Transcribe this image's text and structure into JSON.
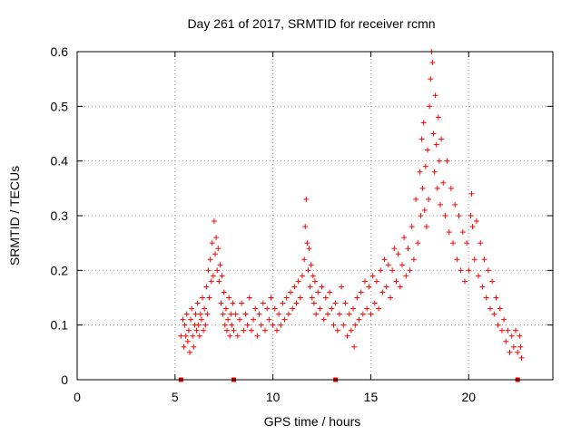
{
  "chart_data": {
    "type": "scatter",
    "title": "Day 261 of 2017, SRMTID for receiver rcmn",
    "xlabel": "GPS time / hours",
    "ylabel": "SRMTID / TECUs",
    "xlim": [
      0,
      24.3
    ],
    "ylim": [
      0,
      0.6
    ],
    "x_ticks": [
      0,
      5,
      10,
      15,
      20
    ],
    "x_tick_labels": [
      "0",
      "5",
      "10",
      "15",
      "20"
    ],
    "y_ticks": [
      0,
      0.1,
      0.2,
      0.3,
      0.4,
      0.5,
      0.6
    ],
    "y_tick_labels": [
      "0",
      "0.1",
      "0.2",
      "0.3",
      "0.4",
      "0.5",
      "0.6"
    ],
    "grid": true,
    "marker": "+",
    "color": "#ff0000",
    "baseline_markers_x": [
      5.3,
      8.0,
      13.2,
      22.5
    ],
    "series": [
      {
        "name": "SRMTID",
        "points": [
          [
            5.3,
            0.08
          ],
          [
            5.4,
            0.11
          ],
          [
            5.45,
            0.06
          ],
          [
            5.5,
            0.1
          ],
          [
            5.55,
            0.08
          ],
          [
            5.6,
            0.12
          ],
          [
            5.65,
            0.07
          ],
          [
            5.7,
            0.09
          ],
          [
            5.75,
            0.05
          ],
          [
            5.8,
            0.11
          ],
          [
            5.85,
            0.13
          ],
          [
            5.9,
            0.08
          ],
          [
            5.95,
            0.06
          ],
          [
            6.0,
            0.1
          ],
          [
            6.05,
            0.12
          ],
          [
            6.1,
            0.09
          ],
          [
            6.15,
            0.14
          ],
          [
            6.2,
            0.1
          ],
          [
            6.25,
            0.08
          ],
          [
            6.3,
            0.12
          ],
          [
            6.35,
            0.11
          ],
          [
            6.4,
            0.15
          ],
          [
            6.45,
            0.09
          ],
          [
            6.5,
            0.13
          ],
          [
            6.55,
            0.1
          ],
          [
            6.6,
            0.17
          ],
          [
            6.65,
            0.12
          ],
          [
            6.7,
            0.2
          ],
          [
            6.75,
            0.15
          ],
          [
            6.8,
            0.22
          ],
          [
            6.85,
            0.18
          ],
          [
            6.9,
            0.25
          ],
          [
            6.95,
            0.19
          ],
          [
            7.0,
            0.29
          ],
          [
            7.05,
            0.23
          ],
          [
            7.1,
            0.26
          ],
          [
            7.15,
            0.2
          ],
          [
            7.2,
            0.24
          ],
          [
            7.25,
            0.18
          ],
          [
            7.3,
            0.21
          ],
          [
            7.35,
            0.14
          ],
          [
            7.4,
            0.19
          ],
          [
            7.45,
            0.12
          ],
          [
            7.5,
            0.16
          ],
          [
            7.55,
            0.1
          ],
          [
            7.6,
            0.13
          ],
          [
            7.65,
            0.09
          ],
          [
            7.7,
            0.11
          ],
          [
            7.75,
            0.15
          ],
          [
            7.8,
            0.08
          ],
          [
            7.85,
            0.12
          ],
          [
            7.9,
            0.1
          ],
          [
            7.95,
            0.14
          ],
          [
            8.0,
            0.09
          ],
          [
            8.1,
            0.12
          ],
          [
            8.2,
            0.08
          ],
          [
            8.3,
            0.11
          ],
          [
            8.4,
            0.14
          ],
          [
            8.5,
            0.09
          ],
          [
            8.6,
            0.12
          ],
          [
            8.7,
            0.1
          ],
          [
            8.8,
            0.15
          ],
          [
            8.9,
            0.09
          ],
          [
            9.0,
            0.11
          ],
          [
            9.1,
            0.13
          ],
          [
            9.2,
            0.08
          ],
          [
            9.3,
            0.12
          ],
          [
            9.4,
            0.1
          ],
          [
            9.5,
            0.14
          ],
          [
            9.6,
            0.09
          ],
          [
            9.7,
            0.13
          ],
          [
            9.8,
            0.11
          ],
          [
            9.9,
            0.15
          ],
          [
            10.0,
            0.1
          ],
          [
            10.1,
            0.13
          ],
          [
            10.2,
            0.09
          ],
          [
            10.3,
            0.12
          ],
          [
            10.4,
            0.1
          ],
          [
            10.5,
            0.14
          ],
          [
            10.6,
            0.11
          ],
          [
            10.7,
            0.15
          ],
          [
            10.8,
            0.12
          ],
          [
            10.9,
            0.16
          ],
          [
            11.0,
            0.13
          ],
          [
            11.1,
            0.17
          ],
          [
            11.2,
            0.14
          ],
          [
            11.3,
            0.18
          ],
          [
            11.4,
            0.15
          ],
          [
            11.5,
            0.19
          ],
          [
            11.6,
            0.22
          ],
          [
            11.65,
            0.28
          ],
          [
            11.7,
            0.33
          ],
          [
            11.75,
            0.25
          ],
          [
            11.8,
            0.2
          ],
          [
            11.85,
            0.24
          ],
          [
            11.9,
            0.17
          ],
          [
            11.95,
            0.21
          ],
          [
            12.0,
            0.15
          ],
          [
            12.05,
            0.19
          ],
          [
            12.1,
            0.14
          ],
          [
            12.15,
            0.18
          ],
          [
            12.2,
            0.12
          ],
          [
            12.3,
            0.16
          ],
          [
            12.4,
            0.13
          ],
          [
            12.5,
            0.17
          ],
          [
            12.6,
            0.11
          ],
          [
            12.7,
            0.15
          ],
          [
            12.8,
            0.12
          ],
          [
            12.9,
            0.16
          ],
          [
            13.0,
            0.13
          ],
          [
            13.1,
            0.1
          ],
          [
            13.2,
            0.14
          ],
          [
            13.3,
            0.09
          ],
          [
            13.4,
            0.12
          ],
          [
            13.5,
            0.17
          ],
          [
            13.6,
            0.1
          ],
          [
            13.7,
            0.14
          ],
          [
            13.8,
            0.08
          ],
          [
            13.9,
            0.12
          ],
          [
            14.0,
            0.09
          ],
          [
            14.1,
            0.13
          ],
          [
            14.15,
            0.06
          ],
          [
            14.2,
            0.1
          ],
          [
            14.3,
            0.15
          ],
          [
            14.4,
            0.11
          ],
          [
            14.5,
            0.16
          ],
          [
            14.6,
            0.12
          ],
          [
            14.7,
            0.18
          ],
          [
            14.8,
            0.13
          ],
          [
            14.9,
            0.17
          ],
          [
            15.0,
            0.12
          ],
          [
            15.1,
            0.19
          ],
          [
            15.2,
            0.14
          ],
          [
            15.3,
            0.18
          ],
          [
            15.4,
            0.13
          ],
          [
            15.5,
            0.2
          ],
          [
            15.6,
            0.16
          ],
          [
            15.7,
            0.22
          ],
          [
            15.8,
            0.17
          ],
          [
            15.9,
            0.21
          ],
          [
            16.0,
            0.15
          ],
          [
            16.1,
            0.2
          ],
          [
            16.2,
            0.24
          ],
          [
            16.3,
            0.18
          ],
          [
            16.4,
            0.23
          ],
          [
            16.5,
            0.17
          ],
          [
            16.6,
            0.21
          ],
          [
            16.7,
            0.26
          ],
          [
            16.8,
            0.19
          ],
          [
            16.9,
            0.24
          ],
          [
            17.0,
            0.2
          ],
          [
            17.1,
            0.28
          ],
          [
            17.2,
            0.22
          ],
          [
            17.3,
            0.33
          ],
          [
            17.4,
            0.25
          ],
          [
            17.5,
            0.38
          ],
          [
            17.55,
            0.3
          ],
          [
            17.6,
            0.44
          ],
          [
            17.65,
            0.35
          ],
          [
            17.7,
            0.47
          ],
          [
            17.75,
            0.31
          ],
          [
            17.8,
            0.39
          ],
          [
            17.85,
            0.28
          ],
          [
            17.9,
            0.42
          ],
          [
            17.95,
            0.33
          ],
          [
            18.0,
            0.5
          ],
          [
            18.05,
            0.55
          ],
          [
            18.1,
            0.6
          ],
          [
            18.15,
            0.58
          ],
          [
            18.2,
            0.45
          ],
          [
            18.25,
            0.38
          ],
          [
            18.3,
            0.52
          ],
          [
            18.35,
            0.43
          ],
          [
            18.4,
            0.35
          ],
          [
            18.45,
            0.48
          ],
          [
            18.5,
            0.4
          ],
          [
            18.55,
            0.32
          ],
          [
            18.6,
            0.44
          ],
          [
            18.7,
            0.36
          ],
          [
            18.8,
            0.3
          ],
          [
            18.9,
            0.4
          ],
          [
            19.0,
            0.27
          ],
          [
            19.1,
            0.35
          ],
          [
            19.2,
            0.25
          ],
          [
            19.3,
            0.32
          ],
          [
            19.4,
            0.22
          ],
          [
            19.5,
            0.3
          ],
          [
            19.6,
            0.2
          ],
          [
            19.7,
            0.27
          ],
          [
            19.8,
            0.18
          ],
          [
            19.9,
            0.25
          ],
          [
            20.0,
            0.2
          ],
          [
            20.1,
            0.3
          ],
          [
            20.15,
            0.34
          ],
          [
            20.2,
            0.28
          ],
          [
            20.3,
            0.22
          ],
          [
            20.4,
            0.29
          ],
          [
            20.5,
            0.19
          ],
          [
            20.6,
            0.25
          ],
          [
            20.7,
            0.17
          ],
          [
            20.8,
            0.22
          ],
          [
            20.9,
            0.15
          ],
          [
            21.0,
            0.2
          ],
          [
            21.1,
            0.13
          ],
          [
            21.2,
            0.18
          ],
          [
            21.3,
            0.12
          ],
          [
            21.4,
            0.15
          ],
          [
            21.5,
            0.1
          ],
          [
            21.6,
            0.13
          ],
          [
            21.7,
            0.09
          ],
          [
            21.8,
            0.11
          ],
          [
            21.9,
            0.07
          ],
          [
            22.0,
            0.09
          ],
          [
            22.1,
            0.05
          ],
          [
            22.2,
            0.08
          ],
          [
            22.3,
            0.06
          ],
          [
            22.4,
            0.09
          ],
          [
            22.5,
            0.05
          ],
          [
            22.6,
            0.08
          ],
          [
            22.65,
            0.06
          ],
          [
            22.7,
            0.04
          ]
        ]
      }
    ]
  }
}
